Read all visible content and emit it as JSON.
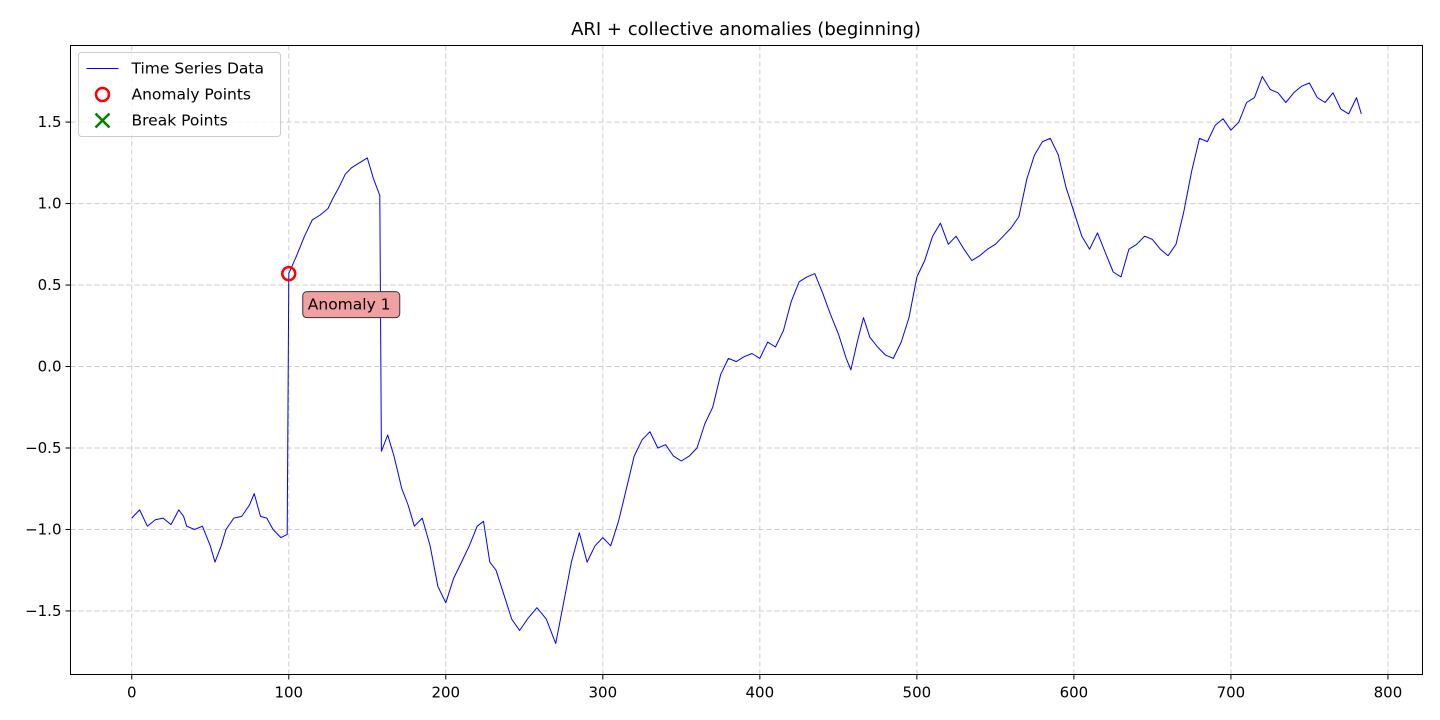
{
  "chart_data": {
    "type": "line",
    "title": "ARI + collective anomalies (beginning)",
    "xlabel": "",
    "ylabel": "",
    "xlim": [
      -39,
      822
    ],
    "ylim": [
      -1.89,
      1.97
    ],
    "xticks": [
      0,
      100,
      200,
      300,
      400,
      500,
      600,
      700,
      800
    ],
    "yticks": [
      -1.5,
      -1.0,
      -0.5,
      0.0,
      0.5,
      1.0,
      1.5
    ],
    "ytick_labels": [
      "−1.5",
      "−1.0",
      "−0.5",
      "0.0",
      "0.5",
      "1.0",
      "1.5"
    ],
    "grid": true,
    "legend": {
      "position": "top-left",
      "entries": [
        {
          "label": "Time Series Data",
          "marker": "line",
          "color": "#0000ff"
        },
        {
          "label": "Anomaly Points",
          "marker": "circle",
          "color": "#ff0000"
        },
        {
          "label": "Break Points",
          "marker": "x",
          "color": "#008000"
        }
      ]
    },
    "series": [
      {
        "name": "Time Series Data",
        "color": "#0000ff",
        "points": [
          [
            0,
            -0.93
          ],
          [
            5,
            -0.88
          ],
          [
            10,
            -0.98
          ],
          [
            15,
            -0.94
          ],
          [
            20,
            -0.93
          ],
          [
            25,
            -0.97
          ],
          [
            30,
            -0.88
          ],
          [
            33,
            -0.92
          ],
          [
            35,
            -0.98
          ],
          [
            40,
            -1.0
          ],
          [
            45,
            -0.98
          ],
          [
            50,
            -1.1
          ],
          [
            53,
            -1.2
          ],
          [
            57,
            -1.1
          ],
          [
            60,
            -1.0
          ],
          [
            65,
            -0.93
          ],
          [
            70,
            -0.92
          ],
          [
            75,
            -0.85
          ],
          [
            78,
            -0.78
          ],
          [
            82,
            -0.92
          ],
          [
            86,
            -0.93
          ],
          [
            90,
            -1.0
          ],
          [
            95,
            -1.05
          ],
          [
            99,
            -1.03
          ],
          [
            100,
            0.57
          ],
          [
            105,
            0.68
          ],
          [
            110,
            0.8
          ],
          [
            115,
            0.9
          ],
          [
            120,
            0.93
          ],
          [
            125,
            0.97
          ],
          [
            128,
            1.03
          ],
          [
            132,
            1.1
          ],
          [
            136,
            1.18
          ],
          [
            140,
            1.22
          ],
          [
            145,
            1.25
          ],
          [
            150,
            1.28
          ],
          [
            154,
            1.15
          ],
          [
            158,
            1.05
          ],
          [
            159,
            -0.52
          ],
          [
            163,
            -0.42
          ],
          [
            167,
            -0.55
          ],
          [
            172,
            -0.75
          ],
          [
            176,
            -0.85
          ],
          [
            180,
            -0.98
          ],
          [
            185,
            -0.93
          ],
          [
            190,
            -1.1
          ],
          [
            195,
            -1.35
          ],
          [
            200,
            -1.45
          ],
          [
            205,
            -1.3
          ],
          [
            210,
            -1.2
          ],
          [
            215,
            -1.1
          ],
          [
            220,
            -0.98
          ],
          [
            224,
            -0.95
          ],
          [
            228,
            -1.2
          ],
          [
            232,
            -1.25
          ],
          [
            237,
            -1.4
          ],
          [
            242,
            -1.55
          ],
          [
            247,
            -1.62
          ],
          [
            252,
            -1.55
          ],
          [
            258,
            -1.48
          ],
          [
            264,
            -1.55
          ],
          [
            270,
            -1.7
          ],
          [
            275,
            -1.45
          ],
          [
            280,
            -1.2
          ],
          [
            285,
            -1.02
          ],
          [
            290,
            -1.2
          ],
          [
            295,
            -1.1
          ],
          [
            300,
            -1.05
          ],
          [
            305,
            -1.1
          ],
          [
            310,
            -0.95
          ],
          [
            315,
            -0.75
          ],
          [
            320,
            -0.55
          ],
          [
            325,
            -0.45
          ],
          [
            330,
            -0.4
          ],
          [
            335,
            -0.5
          ],
          [
            340,
            -0.48
          ],
          [
            345,
            -0.55
          ],
          [
            350,
            -0.58
          ],
          [
            355,
            -0.55
          ],
          [
            360,
            -0.5
          ],
          [
            365,
            -0.35
          ],
          [
            370,
            -0.25
          ],
          [
            375,
            -0.05
          ],
          [
            380,
            0.05
          ],
          [
            385,
            0.03
          ],
          [
            390,
            0.06
          ],
          [
            395,
            0.08
          ],
          [
            400,
            0.05
          ],
          [
            405,
            0.15
          ],
          [
            410,
            0.12
          ],
          [
            415,
            0.22
          ],
          [
            420,
            0.4
          ],
          [
            425,
            0.52
          ],
          [
            430,
            0.55
          ],
          [
            435,
            0.57
          ],
          [
            440,
            0.45
          ],
          [
            445,
            0.32
          ],
          [
            450,
            0.2
          ],
          [
            455,
            0.05
          ],
          [
            458,
            -0.02
          ],
          [
            462,
            0.15
          ],
          [
            466,
            0.3
          ],
          [
            470,
            0.18
          ],
          [
            475,
            0.12
          ],
          [
            480,
            0.07
          ],
          [
            485,
            0.05
          ],
          [
            490,
            0.15
          ],
          [
            495,
            0.3
          ],
          [
            500,
            0.55
          ],
          [
            505,
            0.65
          ],
          [
            510,
            0.8
          ],
          [
            515,
            0.88
          ],
          [
            520,
            0.75
          ],
          [
            525,
            0.8
          ],
          [
            530,
            0.72
          ],
          [
            535,
            0.65
          ],
          [
            540,
            0.68
          ],
          [
            545,
            0.72
          ],
          [
            550,
            0.75
          ],
          [
            555,
            0.8
          ],
          [
            560,
            0.85
          ],
          [
            565,
            0.92
          ],
          [
            570,
            1.15
          ],
          [
            575,
            1.3
          ],
          [
            580,
            1.38
          ],
          [
            585,
            1.4
          ],
          [
            590,
            1.3
          ],
          [
            595,
            1.1
          ],
          [
            600,
            0.95
          ],
          [
            605,
            0.8
          ],
          [
            610,
            0.72
          ],
          [
            615,
            0.82
          ],
          [
            620,
            0.7
          ],
          [
            625,
            0.58
          ],
          [
            630,
            0.55
          ],
          [
            635,
            0.72
          ],
          [
            640,
            0.75
          ],
          [
            645,
            0.8
          ],
          [
            650,
            0.78
          ],
          [
            655,
            0.72
          ],
          [
            660,
            0.68
          ],
          [
            665,
            0.75
          ],
          [
            670,
            0.95
          ],
          [
            675,
            1.2
          ],
          [
            680,
            1.4
          ],
          [
            685,
            1.38
          ],
          [
            690,
            1.48
          ],
          [
            695,
            1.52
          ],
          [
            700,
            1.45
          ],
          [
            705,
            1.5
          ],
          [
            710,
            1.62
          ],
          [
            715,
            1.65
          ],
          [
            720,
            1.78
          ],
          [
            725,
            1.7
          ],
          [
            730,
            1.68
          ],
          [
            735,
            1.62
          ],
          [
            740,
            1.68
          ],
          [
            745,
            1.72
          ],
          [
            750,
            1.74
          ],
          [
            755,
            1.65
          ],
          [
            760,
            1.62
          ],
          [
            765,
            1.68
          ],
          [
            770,
            1.58
          ],
          [
            775,
            1.55
          ],
          [
            780,
            1.65
          ],
          [
            783,
            1.55
          ]
        ]
      }
    ],
    "anomaly_points": [
      {
        "x": 100,
        "y": 0.57
      }
    ],
    "annotations": [
      {
        "text": "Anomaly 1",
        "x": 100,
        "y": 0.57,
        "box_color": "#f0a0a0"
      }
    ]
  }
}
